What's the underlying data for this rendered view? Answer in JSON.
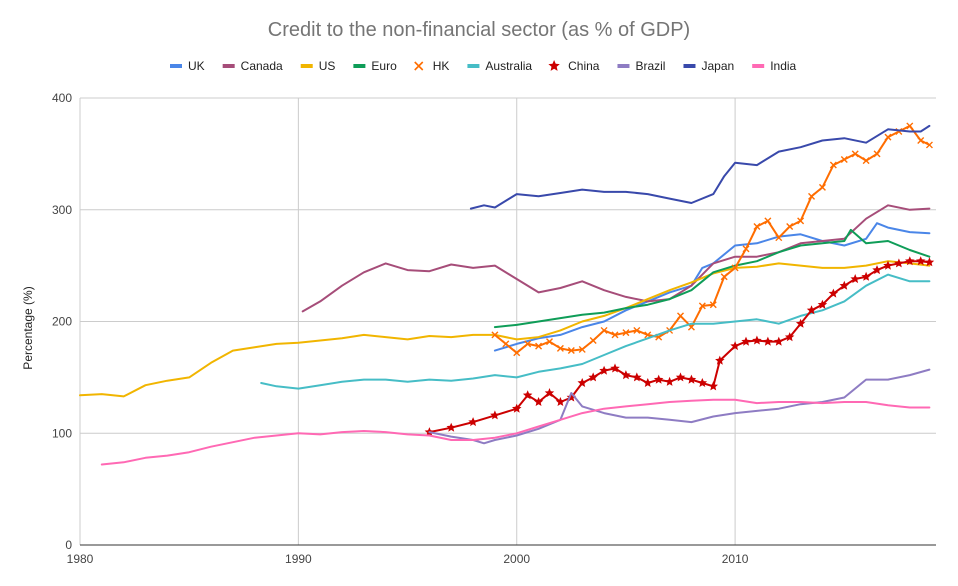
{
  "chart_data": {
    "type": "line",
    "title": "Credit to the non-financial sector (as % of GDP)",
    "xlabel": "",
    "ylabel": "Percentage (%)",
    "xlim": [
      1980,
      2019.2
    ],
    "ylim": [
      0,
      400
    ],
    "xticks": [
      1980,
      1990,
      2000,
      2010
    ],
    "yticks": [
      0,
      100,
      200,
      300,
      400
    ],
    "grid": true,
    "legend_position": "top",
    "series": [
      {
        "name": "UK",
        "color": "#4a86e8",
        "marker": "none",
        "x": [
          1999.0,
          2000.0,
          2001.0,
          2002.0,
          2003.0,
          2004.0,
          2005.0,
          2006.0,
          2007.0,
          2008.0,
          2008.5,
          2009.0,
          2010.0,
          2011.0,
          2012.0,
          2013.0,
          2014.0,
          2015.0,
          2016.0,
          2016.5,
          2017.0,
          2018.0,
          2018.9
        ],
        "y": [
          174,
          180,
          185,
          188,
          195,
          200,
          210,
          218,
          226,
          232,
          248,
          252,
          268,
          270,
          276,
          278,
          272,
          268,
          274,
          288,
          284,
          280,
          279
        ]
      },
      {
        "name": "Canada",
        "color": "#a64d79",
        "marker": "none",
        "x": [
          1990.2,
          1991.0,
          1992.0,
          1993.0,
          1994.0,
          1995.0,
          1996.0,
          1997.0,
          1998.0,
          1999.0,
          2000.0,
          2001.0,
          2002.0,
          2003.0,
          2004.0,
          2005.0,
          2006.0,
          2007.0,
          2008.0,
          2009.0,
          2010.0,
          2011.0,
          2012.0,
          2013.0,
          2014.0,
          2015.0,
          2016.0,
          2017.0,
          2018.0,
          2018.9
        ],
        "y": [
          209,
          218,
          232,
          244,
          252,
          246,
          245,
          251,
          248,
          250,
          238,
          226,
          230,
          236,
          228,
          222,
          218,
          220,
          232,
          252,
          258,
          258,
          262,
          270,
          272,
          274,
          292,
          304,
          300,
          301
        ]
      },
      {
        "name": "US",
        "color": "#f1b500",
        "marker": "none",
        "x": [
          1980.0,
          1981.0,
          1982.0,
          1983.0,
          1984.0,
          1985.0,
          1986.0,
          1987.0,
          1988.0,
          1989.0,
          1990.0,
          1991.0,
          1992.0,
          1993.0,
          1994.0,
          1995.0,
          1996.0,
          1997.0,
          1998.0,
          1999.0,
          2000.0,
          2001.0,
          2002.0,
          2003.0,
          2004.0,
          2005.0,
          2006.0,
          2007.0,
          2008.0,
          2009.0,
          2010.0,
          2011.0,
          2012.0,
          2013.0,
          2014.0,
          2015.0,
          2016.0,
          2017.0,
          2018.0,
          2018.9
        ],
        "y": [
          134,
          135,
          133,
          143,
          147,
          150,
          163,
          174,
          177,
          180,
          181,
          183,
          185,
          188,
          186,
          184,
          187,
          186,
          188,
          188,
          184,
          186,
          192,
          200,
          205,
          212,
          220,
          228,
          235,
          243,
          248,
          249,
          252,
          250,
          248,
          248,
          250,
          254,
          252,
          250
        ]
      },
      {
        "name": "Euro",
        "color": "#0f9d58",
        "marker": "none",
        "x": [
          1999.0,
          2000.0,
          2001.0,
          2002.0,
          2003.0,
          2004.0,
          2005.0,
          2006.0,
          2007.0,
          2008.0,
          2009.0,
          2010.0,
          2011.0,
          2012.0,
          2013.0,
          2014.0,
          2015.0,
          2015.3,
          2016.0,
          2017.0,
          2018.0,
          2018.9
        ],
        "y": [
          195,
          197,
          200,
          203,
          206,
          208,
          212,
          215,
          220,
          228,
          244,
          250,
          254,
          262,
          268,
          270,
          272,
          282,
          270,
          272,
          264,
          258
        ]
      },
      {
        "name": "HK",
        "color": "#ff6d00",
        "marker": "x",
        "x": [
          1999.0,
          1999.5,
          2000.0,
          2000.5,
          2001.0,
          2001.5,
          2002.0,
          2002.5,
          2003.0,
          2003.5,
          2004.0,
          2004.5,
          2005.0,
          2005.5,
          2006.0,
          2006.5,
          2007.0,
          2007.5,
          2008.0,
          2008.5,
          2009.0,
          2009.5,
          2010.0,
          2010.5,
          2011.0,
          2011.5,
          2012.0,
          2012.5,
          2013.0,
          2013.5,
          2014.0,
          2014.5,
          2015.0,
          2015.5,
          2016.0,
          2016.5,
          2017.0,
          2017.5,
          2018.0,
          2018.5,
          2018.9
        ],
        "y": [
          188,
          180,
          172,
          180,
          178,
          182,
          176,
          174,
          175,
          183,
          192,
          188,
          190,
          192,
          188,
          186,
          192,
          205,
          195,
          214,
          215,
          240,
          248,
          265,
          285,
          290,
          275,
          285,
          290,
          312,
          320,
          340,
          345,
          350,
          344,
          350,
          365,
          370,
          375,
          362,
          358
        ]
      },
      {
        "name": "Australia",
        "color": "#46bdc6",
        "marker": "none",
        "x": [
          1988.3,
          1989.0,
          1990.0,
          1991.0,
          1992.0,
          1993.0,
          1994.0,
          1995.0,
          1996.0,
          1997.0,
          1998.0,
          1999.0,
          2000.0,
          2001.0,
          2002.0,
          2003.0,
          2004.0,
          2005.0,
          2006.0,
          2007.0,
          2008.0,
          2009.0,
          2010.0,
          2011.0,
          2012.0,
          2013.0,
          2014.0,
          2015.0,
          2016.0,
          2017.0,
          2018.0,
          2018.9
        ],
        "y": [
          145,
          142,
          140,
          143,
          146,
          148,
          148,
          146,
          148,
          147,
          149,
          152,
          150,
          155,
          158,
          162,
          170,
          178,
          185,
          192,
          198,
          198,
          200,
          202,
          198,
          205,
          210,
          218,
          232,
          242,
          236,
          236
        ]
      },
      {
        "name": "China",
        "color": "#cc0000",
        "marker": "star",
        "x": [
          1996.0,
          1997.0,
          1998.0,
          1999.0,
          2000.0,
          2000.5,
          2001.0,
          2001.5,
          2002.0,
          2002.5,
          2003.0,
          2003.5,
          2004.0,
          2004.5,
          2005.0,
          2005.5,
          2006.0,
          2006.5,
          2007.0,
          2007.5,
          2008.0,
          2008.5,
          2009.0,
          2009.3,
          2010.0,
          2010.5,
          2011.0,
          2011.5,
          2012.0,
          2012.5,
          2013.0,
          2013.5,
          2014.0,
          2014.5,
          2015.0,
          2015.5,
          2016.0,
          2016.5,
          2017.0,
          2017.5,
          2018.0,
          2018.5,
          2018.9
        ],
        "y": [
          101,
          105,
          110,
          116,
          122,
          134,
          128,
          136,
          128,
          132,
          145,
          150,
          156,
          158,
          152,
          150,
          145,
          148,
          146,
          150,
          148,
          145,
          142,
          165,
          178,
          182,
          183,
          182,
          182,
          186,
          198,
          210,
          215,
          225,
          232,
          238,
          240,
          246,
          250,
          252,
          254,
          254,
          253
        ]
      },
      {
        "name": "Brazil",
        "color": "#8e7cc3",
        "marker": "none",
        "x": [
          1996.0,
          1997.0,
          1998.0,
          1998.5,
          1999.0,
          2000.0,
          2001.0,
          2002.0,
          2002.5,
          2003.0,
          2004.0,
          2005.0,
          2006.0,
          2007.0,
          2008.0,
          2009.0,
          2010.0,
          2011.0,
          2012.0,
          2013.0,
          2014.0,
          2015.0,
          2016.0,
          2017.0,
          2018.0,
          2018.9
        ],
        "y": [
          101,
          97,
          94,
          91,
          94,
          98,
          104,
          112,
          136,
          124,
          118,
          114,
          114,
          112,
          110,
          115,
          118,
          120,
          122,
          126,
          128,
          132,
          148,
          148,
          152,
          157
        ]
      },
      {
        "name": "Japan",
        "color": "#3949ab",
        "marker": "none",
        "x": [
          1997.9,
          1998.5,
          1999.0,
          2000.0,
          2001.0,
          2002.0,
          2003.0,
          2004.0,
          2005.0,
          2006.0,
          2007.0,
          2008.0,
          2009.0,
          2009.5,
          2010.0,
          2011.0,
          2012.0,
          2013.0,
          2014.0,
          2015.0,
          2016.0,
          2017.0,
          2018.0,
          2018.5,
          2018.9
        ],
        "y": [
          301,
          304,
          302,
          314,
          312,
          315,
          318,
          316,
          316,
          314,
          310,
          306,
          314,
          330,
          342,
          340,
          352,
          356,
          362,
          364,
          360,
          372,
          370,
          370,
          375
        ]
      },
      {
        "name": "India",
        "color": "#ff69b4",
        "marker": "none",
        "x": [
          1981.0,
          1982.0,
          1983.0,
          1984.0,
          1985.0,
          1986.0,
          1987.0,
          1988.0,
          1989.0,
          1990.0,
          1991.0,
          1992.0,
          1993.0,
          1994.0,
          1995.0,
          1996.0,
          1997.0,
          1998.0,
          1999.0,
          2000.0,
          2001.0,
          2002.0,
          2003.0,
          2004.0,
          2005.0,
          2006.0,
          2007.0,
          2008.0,
          2009.0,
          2010.0,
          2011.0,
          2012.0,
          2013.0,
          2014.0,
          2015.0,
          2016.0,
          2017.0,
          2018.0,
          2018.9
        ],
        "y": [
          72,
          74,
          78,
          80,
          83,
          88,
          92,
          96,
          98,
          100,
          99,
          101,
          102,
          101,
          99,
          98,
          94,
          94,
          96,
          100,
          106,
          112,
          118,
          122,
          124,
          126,
          128,
          129,
          130,
          130,
          127,
          128,
          128,
          127,
          128,
          128,
          125,
          123,
          123
        ]
      }
    ]
  }
}
